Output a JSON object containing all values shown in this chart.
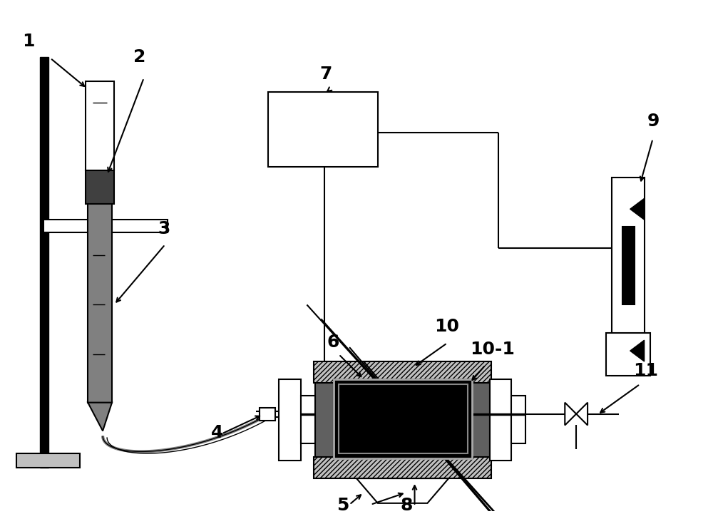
{
  "bg_color": "#ffffff",
  "fig_width": 10.0,
  "fig_height": 7.21,
  "black": "#000000",
  "dgray": "#404040",
  "mgray": "#808080",
  "lgray": "#c0c0c0",
  "hgray": "#909090"
}
